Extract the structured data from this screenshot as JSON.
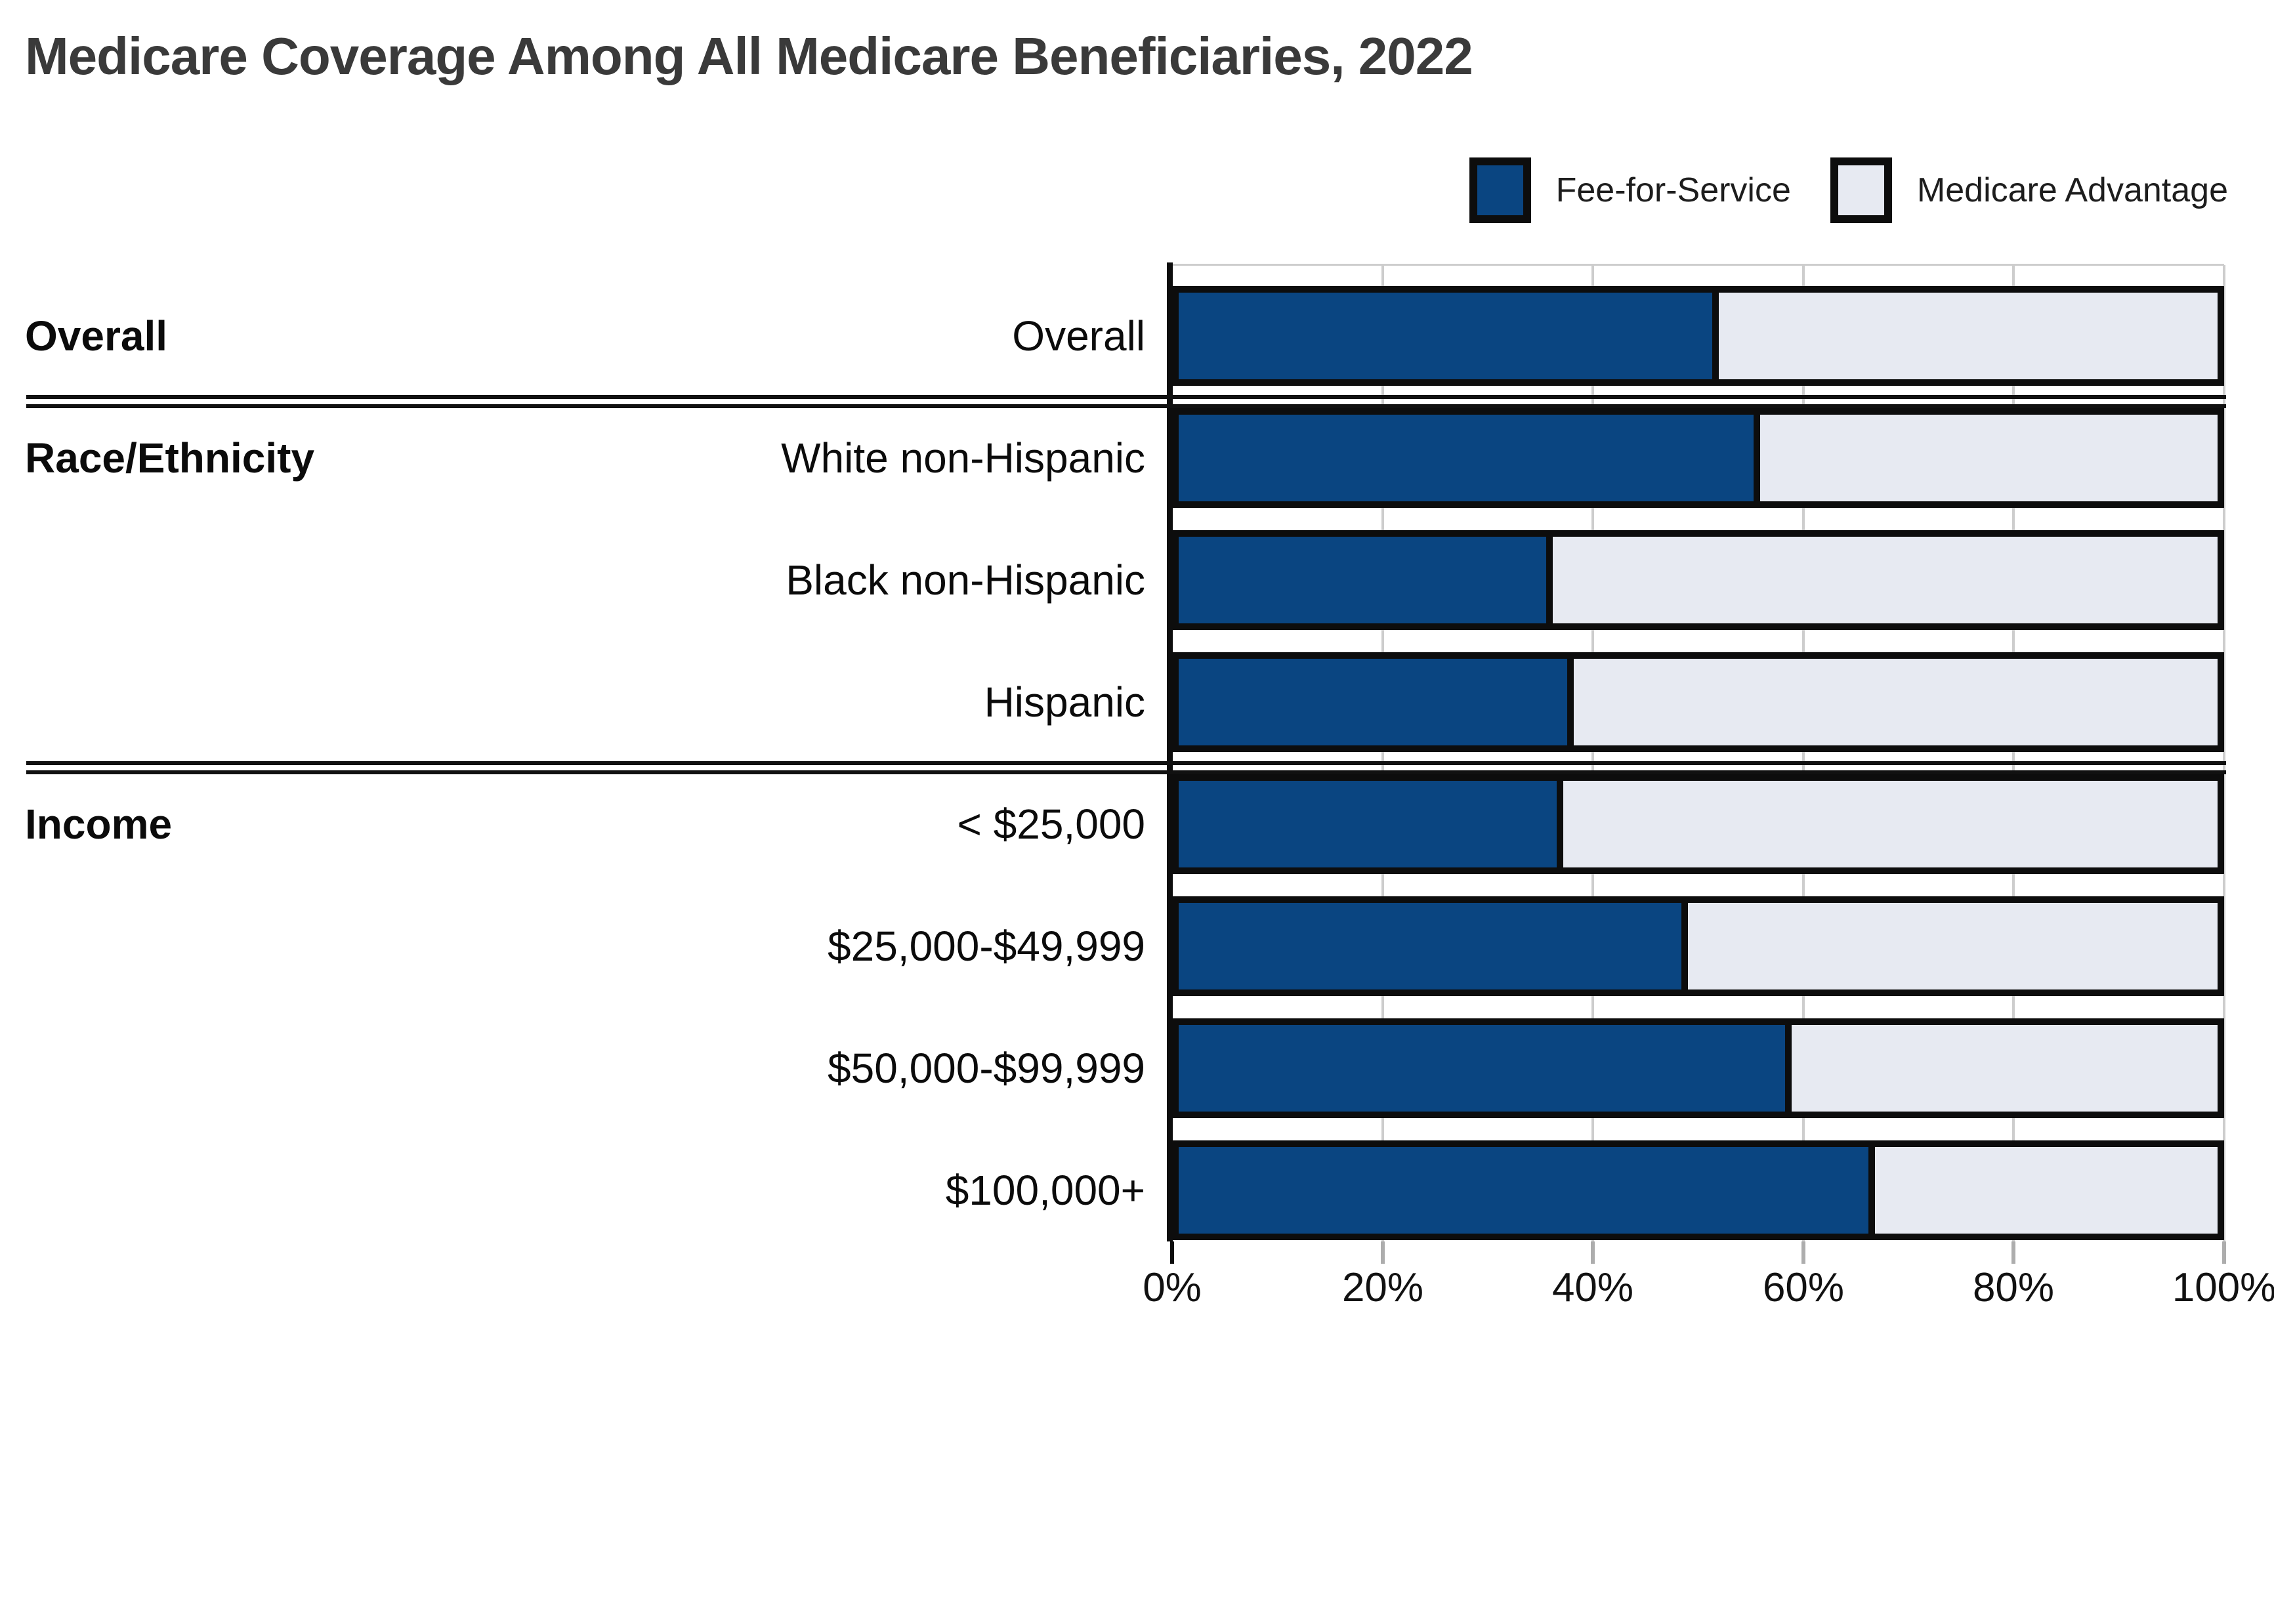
{
  "title": "Medicare Coverage Among All Medicare Beneficiaries, 2022",
  "legend": [
    {
      "label": "Fee-for-Service",
      "color": "#0a4581"
    },
    {
      "label": "Medicare Advantage",
      "color": "#e7eaf2"
    }
  ],
  "colors": {
    "fee_for_service": "#0a4581",
    "medicare_advantage": "#e7eaf2",
    "bar_border": "#0d0d0d",
    "gridline": "#cdcdcd",
    "title_text": "#3a3a3a"
  },
  "chart_data": {
    "type": "bar",
    "orientation": "horizontal",
    "stacked": true,
    "unit": "percent",
    "title": "Medicare Coverage Among All Medicare Beneficiaries, 2022",
    "xlabel": "",
    "ylabel": "",
    "xlim": [
      0,
      100
    ],
    "x_ticks": [
      0,
      20,
      40,
      60,
      80,
      100
    ],
    "x_tick_labels": [
      "0%",
      "20%",
      "40%",
      "60%",
      "80%",
      "100%"
    ],
    "grid": true,
    "legend_position": "top-right",
    "sections": [
      {
        "label": "Overall",
        "rows": [
          "Overall"
        ]
      },
      {
        "label": "Race/Ethnicity",
        "rows": [
          "White non-Hispanic",
          "Black non-Hispanic",
          "Hispanic"
        ]
      },
      {
        "label": "Income",
        "rows": [
          "< $25,000",
          "$25,000-$49,999",
          "$50,000-$99,999",
          "$100,000+"
        ]
      }
    ],
    "categories": [
      "Overall",
      "White non-Hispanic",
      "Black non-Hispanic",
      "Hispanic",
      "< $25,000",
      "$25,000-$49,999",
      "$50,000-$99,999",
      "$100,000+"
    ],
    "series": [
      {
        "name": "Fee-for-Service",
        "color": "#0a4581",
        "values": [
          52,
          56,
          36,
          38,
          37,
          49,
          59,
          67
        ]
      },
      {
        "name": "Medicare Advantage",
        "color": "#e7eaf2",
        "values": [
          48,
          44,
          64,
          62,
          63,
          51,
          41,
          33
        ]
      }
    ]
  }
}
